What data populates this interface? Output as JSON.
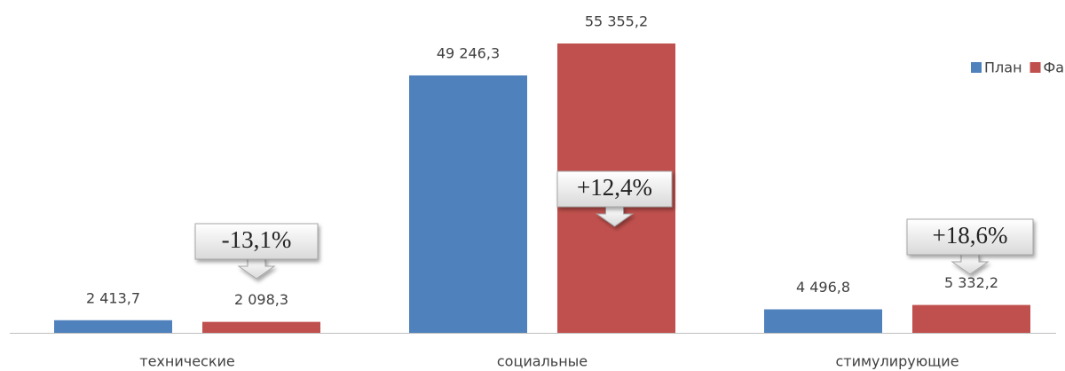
{
  "chart_data": {
    "type": "bar",
    "categories": [
      "технические",
      "социальные",
      "стимулирующие"
    ],
    "series": [
      {
        "name": "План",
        "color": "#4f81bd",
        "values": [
          2413.7,
          49246.3,
          4496.8
        ],
        "value_labels": [
          "2 413,7",
          "49 246,3",
          "4 496,8"
        ]
      },
      {
        "name": "Факт",
        "color": "#c0504d",
        "values": [
          2098.3,
          55355.2,
          5332.2
        ],
        "value_labels": [
          "2 098,3",
          "55 355,2",
          "5 332,2"
        ]
      }
    ],
    "annotations": [
      "-13,1%",
      "+12,4%",
      "+18,6%"
    ],
    "legend": "top-right"
  }
}
